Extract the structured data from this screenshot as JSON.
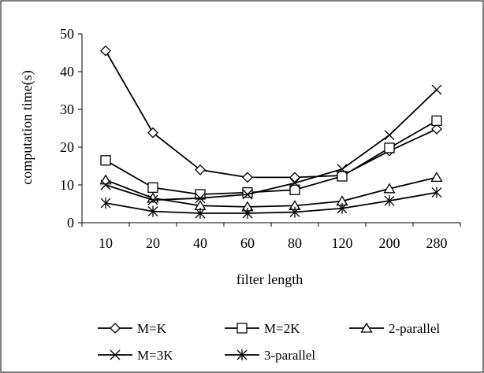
{
  "chart_data": {
    "type": "line",
    "title": "",
    "xlabel": "filter length",
    "ylabel": "computation time(s)",
    "categories": [
      "10",
      "20",
      "40",
      "60",
      "80",
      "120",
      "200",
      "280"
    ],
    "ylim": [
      0,
      50
    ],
    "yticks": [
      0,
      10,
      20,
      30,
      40,
      50
    ],
    "grid": false,
    "legend_position": "bottom",
    "series": [
      {
        "name": "M=K",
        "marker": "diamond",
        "values": [
          45.5,
          23.8,
          14.0,
          12.0,
          12.0,
          12.5,
          19.0,
          24.8
        ]
      },
      {
        "name": "M=2K",
        "marker": "square",
        "values": [
          16.5,
          9.3,
          7.5,
          8.0,
          8.7,
          12.3,
          19.8,
          27.0
        ]
      },
      {
        "name": "2-parallel",
        "marker": "triangle",
        "values": [
          11.3,
          6.5,
          4.5,
          4.2,
          4.5,
          5.7,
          9.0,
          12.0
        ]
      },
      {
        "name": "M=3K",
        "marker": "x",
        "values": [
          10.0,
          6.0,
          6.5,
          7.5,
          10.5,
          14.2,
          23.2,
          35.2
        ]
      },
      {
        "name": "3-parallel",
        "marker": "asterisk",
        "values": [
          5.2,
          3.0,
          2.5,
          2.5,
          2.8,
          3.8,
          5.8,
          8.0
        ]
      }
    ]
  }
}
